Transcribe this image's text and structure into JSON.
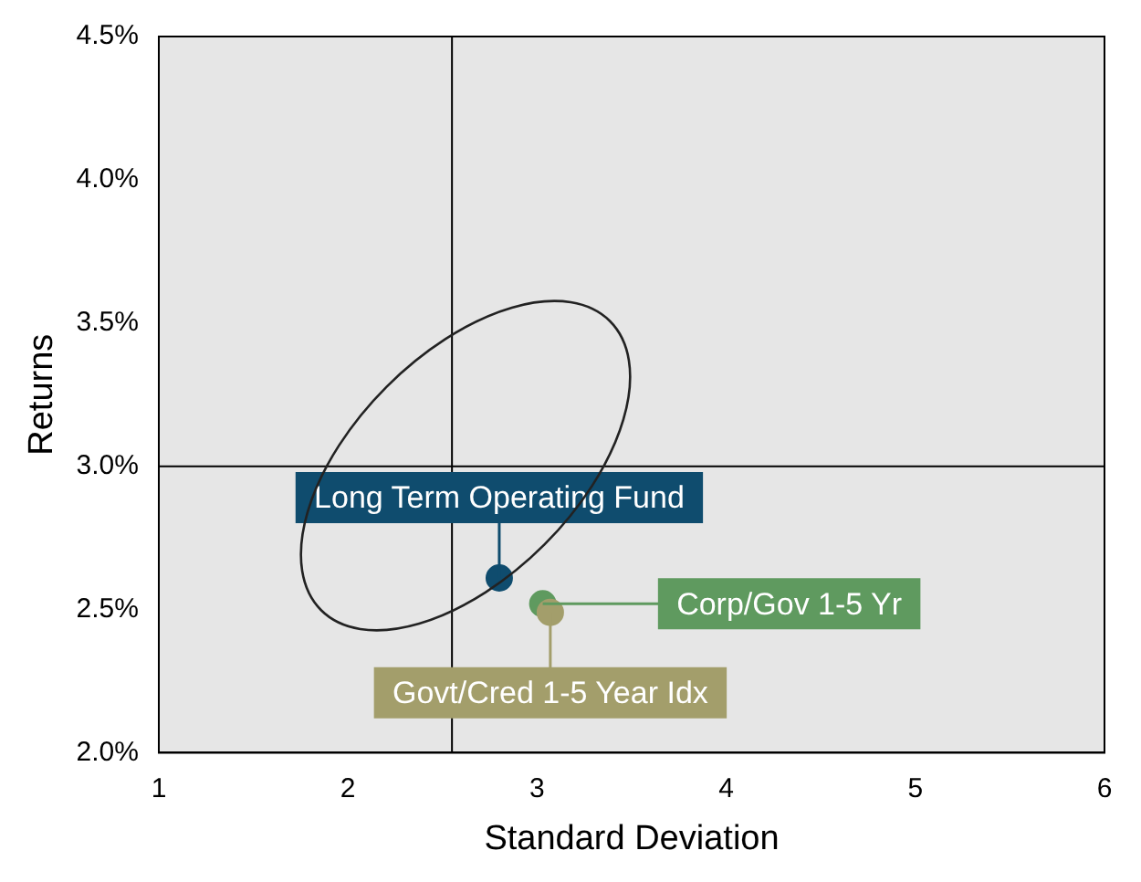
{
  "chart_data": {
    "type": "scatter",
    "xlabel": "Standard Deviation",
    "ylabel": "Returns",
    "xlim": [
      1,
      6
    ],
    "xticks": [
      1,
      2,
      3,
      4,
      5,
      6
    ],
    "ylim": [
      2,
      4.5
    ],
    "yticks": [
      {
        "value": 2,
        "label": "2.0%"
      },
      {
        "value": 2.5,
        "label": "2.5%"
      },
      {
        "value": 3,
        "label": "3.0%"
      },
      {
        "value": 3.5,
        "label": "3.5%"
      },
      {
        "value": 4,
        "label": "4.0%"
      },
      {
        "value": 4.5,
        "label": "4.5%"
      }
    ],
    "series": [
      {
        "name": "Long Term Operating Fund",
        "color": "#0f4c6e",
        "x": [
          2.8
        ],
        "values": [
          2.61
        ]
      },
      {
        "name": "Corp/Gov 1-5 Yr",
        "color": "#5f9a5f",
        "x": [
          3.03
        ],
        "values": [
          2.52
        ]
      },
      {
        "name": "Govt/Cred 1-5 Year Idx",
        "color": "#a39e6b",
        "x": [
          3.07
        ],
        "values": [
          2.49
        ]
      }
    ],
    "ref_lines": [
      {
        "axis": "x",
        "value": 2.55,
        "color": "#000000"
      },
      {
        "axis": "y",
        "value": 3,
        "color": "#000000"
      }
    ],
    "marker": "circle",
    "grid": false,
    "legend": false
  }
}
